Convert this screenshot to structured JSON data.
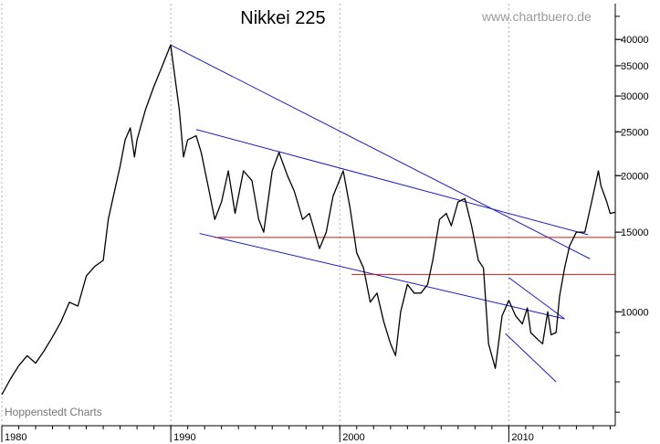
{
  "chart_data": {
    "type": "line",
    "title": "Nikkei 225",
    "watermark": "www.chartbuero.de",
    "credit": "Hoppenstedt Charts",
    "xlabel": "",
    "ylabel": "",
    "y_scale": "log",
    "xlim": [
      1980,
      2016.3
    ],
    "ylim": [
      5600,
      48000
    ],
    "grid": "vertical dotted lines at decades",
    "x_ticks": [
      {
        "value": 1980,
        "label": "1980"
      },
      {
        "value": 1990,
        "label": "1990"
      },
      {
        "value": 2000,
        "label": "2000"
      },
      {
        "value": 2010,
        "label": "2010"
      }
    ],
    "y_ticks": [
      {
        "value": 10000,
        "label": "10000"
      },
      {
        "value": 15000,
        "label": "15000"
      },
      {
        "value": 20000,
        "label": "20000"
      },
      {
        "value": 25000,
        "label": "25000"
      },
      {
        "value": 30000,
        "label": "30000"
      },
      {
        "value": 35000,
        "label": "35000"
      },
      {
        "value": 40000,
        "label": "40000"
      }
    ],
    "series": [
      {
        "color": "#000000",
        "x": [
          1980.0,
          1980.5,
          1981.0,
          1981.5,
          1982.0,
          1982.5,
          1983.0,
          1983.5,
          1984.0,
          1984.5,
          1985.0,
          1985.5,
          1986.0,
          1986.3,
          1986.6,
          1987.0,
          1987.3,
          1987.6,
          1987.85,
          1988.0,
          1988.5,
          1989.0,
          1989.5,
          1989.99,
          1990.2,
          1990.5,
          1990.75,
          1991.0,
          1991.5,
          1991.8,
          1992.2,
          1992.6,
          1993.0,
          1993.4,
          1993.8,
          1994.3,
          1994.8,
          1995.2,
          1995.5,
          1996.0,
          1996.4,
          1996.9,
          1997.3,
          1997.8,
          1998.2,
          1998.8,
          1999.2,
          1999.6,
          2000.2,
          2000.6,
          2001.0,
          2001.4,
          2001.8,
          2002.2,
          2002.6,
          2003.0,
          2003.3,
          2003.6,
          2004.0,
          2004.4,
          2004.8,
          2005.2,
          2005.5,
          2005.9,
          2006.3,
          2006.6,
          2007.0,
          2007.4,
          2007.8,
          2008.2,
          2008.5,
          2008.8,
          2009.2,
          2009.6,
          2010.0,
          2010.4,
          2010.8,
          2011.1,
          2011.3,
          2011.7,
          2012.0,
          2012.3,
          2012.5,
          2012.8,
          2013.0,
          2013.3,
          2013.6,
          2014.0,
          2014.5,
          2014.9,
          2015.3,
          2015.45,
          2015.8,
          2016.0,
          2016.3
        ],
        "y": [
          6560,
          7100,
          7600,
          8000,
          7700,
          8200,
          8800,
          9500,
          10500,
          10300,
          12000,
          12600,
          13000,
          16000,
          18000,
          21000,
          24000,
          25500,
          22000,
          24000,
          28000,
          31500,
          35000,
          38900,
          34000,
          28000,
          22000,
          24000,
          24500,
          22500,
          19000,
          16000,
          17500,
          20500,
          16500,
          20500,
          19500,
          16000,
          15000,
          20500,
          22500,
          20000,
          18500,
          16000,
          16500,
          13800,
          15000,
          18000,
          20500,
          17000,
          13500,
          12500,
          10500,
          11000,
          9500,
          8500,
          8000,
          10000,
          11500,
          11000,
          11000,
          11500,
          13000,
          16000,
          16500,
          15500,
          17500,
          17800,
          15500,
          13000,
          12500,
          8500,
          7500,
          9800,
          10600,
          9800,
          9400,
          10200,
          9000,
          8700,
          8500,
          10000,
          8900,
          9000,
          10800,
          12500,
          14000,
          15000,
          15000,
          17500,
          20500,
          19000,
          17500,
          16500,
          16600
        ]
      }
    ],
    "trendlines": [
      {
        "color": "#1a1acc",
        "x": [
          1989.99,
          2014.8
        ],
        "y": [
          38900,
          13100
        ]
      },
      {
        "color": "#1a1acc",
        "x": [
          1991.5,
          2014.7
        ],
        "y": [
          25300,
          14800
        ]
      },
      {
        "color": "#1a1acc",
        "x": [
          1991.7,
          2013.3
        ],
        "y": [
          14900,
          9650
        ]
      },
      {
        "color": "#1a1acc",
        "x": [
          2010.0,
          2013.3
        ],
        "y": [
          11900,
          9650
        ]
      },
      {
        "color": "#1a1acc",
        "x": [
          2009.8,
          2012.8
        ],
        "y": [
          8950,
          7000
        ]
      },
      {
        "color": "#cc1a1a",
        "x": [
          1992.6,
          2016.3
        ],
        "y": [
          14600,
          14600
        ]
      },
      {
        "color": "#cc1a1a",
        "x": [
          2000.7,
          2016.3
        ],
        "y": [
          12100,
          12100
        ]
      }
    ]
  }
}
